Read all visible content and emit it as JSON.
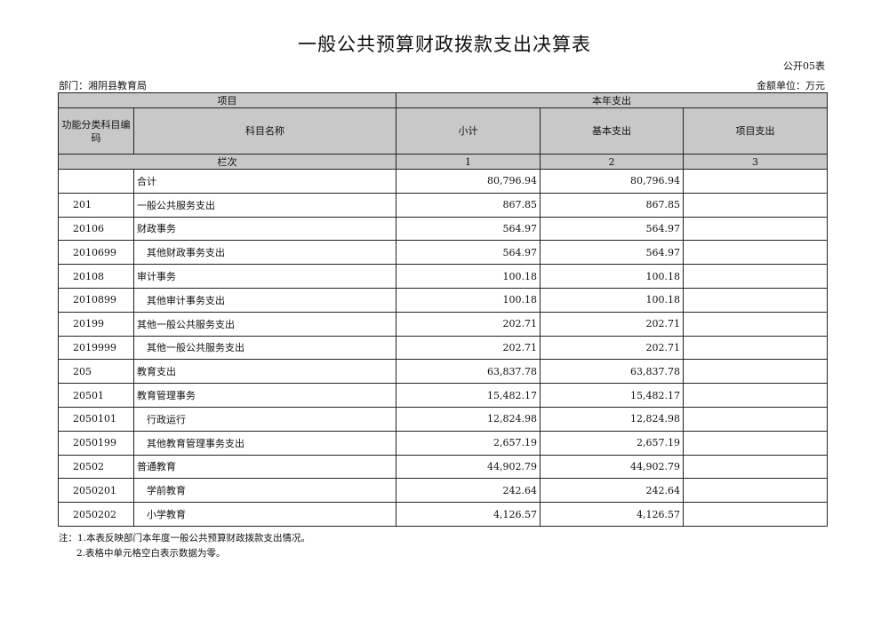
{
  "title": "一般公共预算财政拨款支出决算表",
  "form_no": "公开05表",
  "department": "部门：湘阴县教育局",
  "unit": "金额单位：万元",
  "header": {
    "item": "项目",
    "current_year": "本年支出",
    "code": "功能分类科目编码",
    "name": "科目名称",
    "subtotal": "小计",
    "basic": "基本支出",
    "project": "项目支出",
    "column_index": "栏次",
    "col1": "1",
    "col2": "2",
    "col3": "3"
  },
  "rows": [
    {
      "code": "",
      "name": "合计",
      "level": 0,
      "subtotal": "80,796.94",
      "basic": "80,796.94",
      "project": ""
    },
    {
      "code": "201",
      "name": "一般公共服务支出",
      "level": 0,
      "subtotal": "867.85",
      "basic": "867.85",
      "project": ""
    },
    {
      "code": "20106",
      "name": "财政事务",
      "level": 0,
      "subtotal": "564.97",
      "basic": "564.97",
      "project": ""
    },
    {
      "code": "2010699",
      "name": "其他财政事务支出",
      "level": 2,
      "subtotal": "564.97",
      "basic": "564.97",
      "project": ""
    },
    {
      "code": "20108",
      "name": "审计事务",
      "level": 0,
      "subtotal": "100.18",
      "basic": "100.18",
      "project": ""
    },
    {
      "code": "2010899",
      "name": "其他审计事务支出",
      "level": 2,
      "subtotal": "100.18",
      "basic": "100.18",
      "project": ""
    },
    {
      "code": "20199",
      "name": "其他一般公共服务支出",
      "level": 0,
      "subtotal": "202.71",
      "basic": "202.71",
      "project": ""
    },
    {
      "code": "2019999",
      "name": "其他一般公共服务支出",
      "level": 2,
      "subtotal": "202.71",
      "basic": "202.71",
      "project": ""
    },
    {
      "code": "205",
      "name": "教育支出",
      "level": 0,
      "subtotal": "63,837.78",
      "basic": "63,837.78",
      "project": ""
    },
    {
      "code": "20501",
      "name": "教育管理事务",
      "level": 0,
      "subtotal": "15,482.17",
      "basic": "15,482.17",
      "project": ""
    },
    {
      "code": "2050101",
      "name": "行政运行",
      "level": 2,
      "subtotal": "12,824.98",
      "basic": "12,824.98",
      "project": ""
    },
    {
      "code": "2050199",
      "name": "其他教育管理事务支出",
      "level": 2,
      "subtotal": "2,657.19",
      "basic": "2,657.19",
      "project": ""
    },
    {
      "code": "20502",
      "name": "普通教育",
      "level": 0,
      "subtotal": "44,902.79",
      "basic": "44,902.79",
      "project": ""
    },
    {
      "code": "2050201",
      "name": "学前教育",
      "level": 2,
      "subtotal": "242.64",
      "basic": "242.64",
      "project": ""
    },
    {
      "code": "2050202",
      "name": "小学教育",
      "level": 2,
      "subtotal": "4,126.57",
      "basic": "4,126.57",
      "project": ""
    }
  ],
  "notes": [
    "注：1.本表反映部门本年度一般公共预算财政拨款支出情况。",
    "2.表格中单元格空白表示数据为零。"
  ],
  "colors": {
    "header_bg": "#c8c8c8",
    "border": "#222222"
  }
}
